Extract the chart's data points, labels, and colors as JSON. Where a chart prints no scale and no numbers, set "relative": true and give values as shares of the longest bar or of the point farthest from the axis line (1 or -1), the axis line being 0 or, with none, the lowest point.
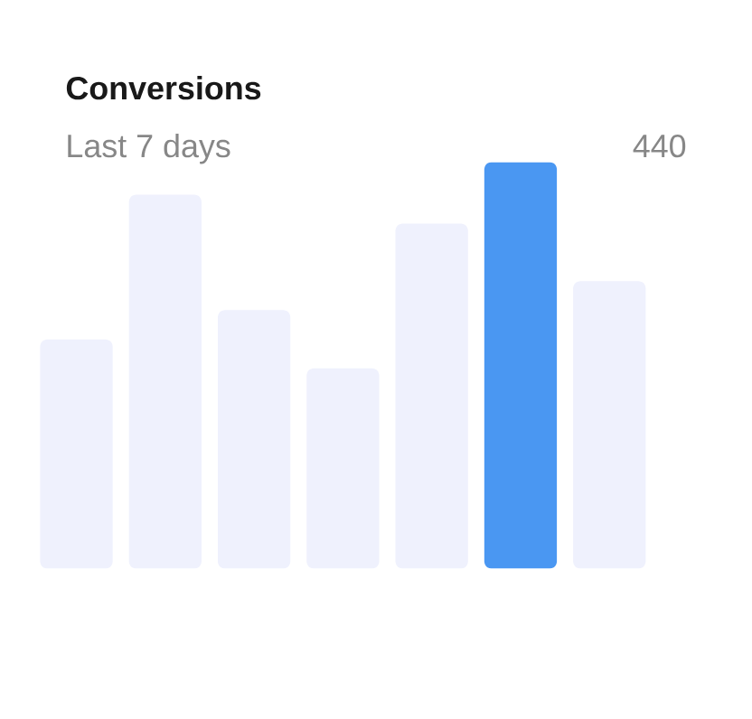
{
  "chart_data": {
    "type": "bar",
    "title": "Conversions",
    "subtitle": "Last 7 days",
    "annotations": [
      "440"
    ],
    "categories": [
      null,
      null,
      null,
      null,
      null,
      null,
      null
    ],
    "values": [
      0.564,
      0.92,
      0.636,
      0.493,
      0.849,
      1,
      0.707
    ],
    "colors": [
      "#eff1fd",
      "#eff1fd",
      "#eff1fd",
      "#eff1fd",
      "#eff1fd",
      "#4a97f2",
      "#eff1fd"
    ],
    "relative": true
  }
}
